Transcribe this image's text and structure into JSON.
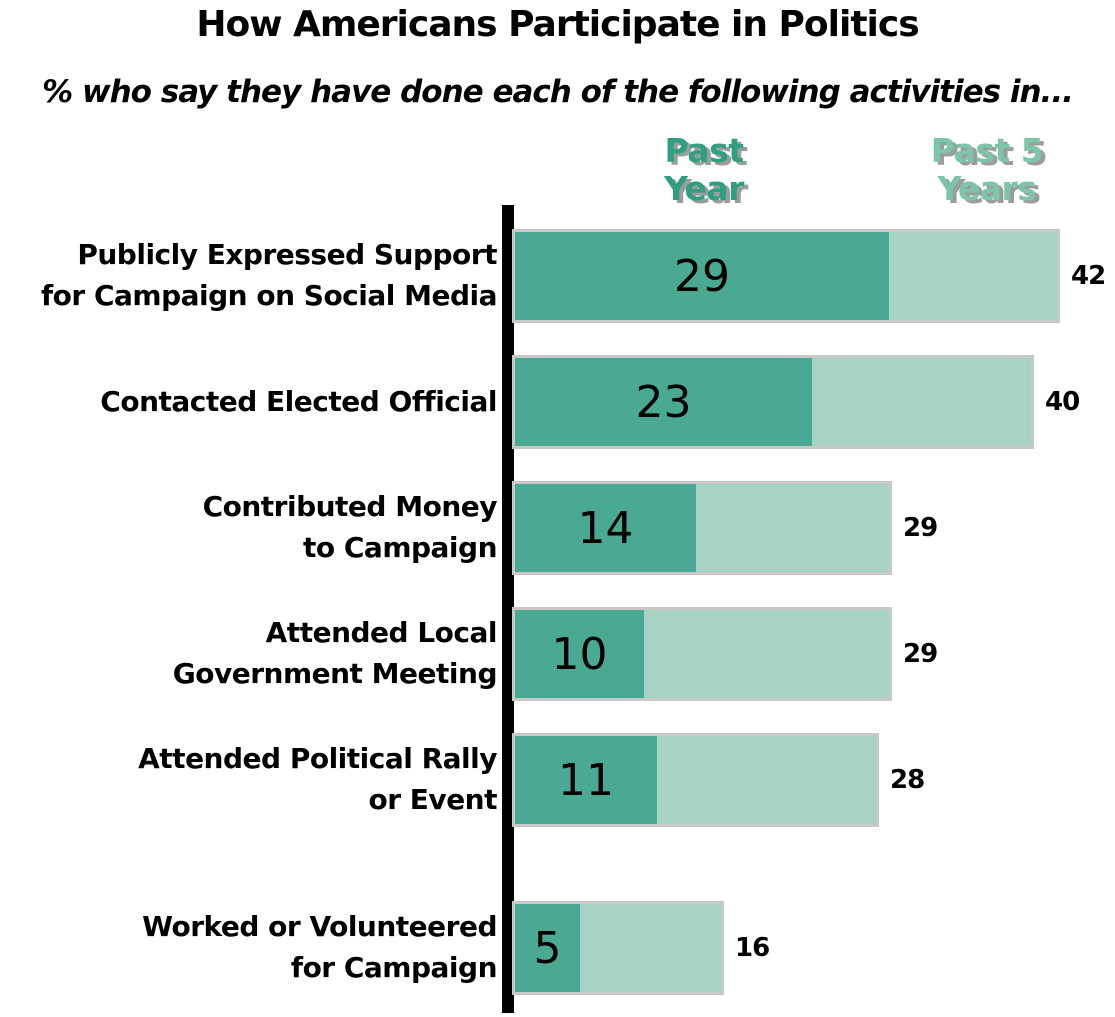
{
  "title": "How Americans Participate in Politics",
  "subtitle": "% who say they have done each of the following activities in...",
  "legend": {
    "past_year_label": "Past Year",
    "past_5_years_label": "Past 5 Years",
    "past_year_color": "#2f9f81",
    "past_5_years_color": "#7bc6a9"
  },
  "colors": {
    "bar_past_year": "#4aa992",
    "bar_past_5_years": "#a7d3c4",
    "bar_outline_shadow": "#c8c8c8",
    "axis": "#000000",
    "text": "#000000"
  },
  "chart_data": {
    "type": "bar",
    "subtype": "horizontal_stacked",
    "title": "How Americans Participate in Politics",
    "subtitle": "% who say they have done each of the following activities in...",
    "categories": [
      [
        "Publicly Expressed Support",
        "for Campaign on Social Media"
      ],
      [
        "Contacted Elected Official"
      ],
      [
        "Contributed Money",
        "to Campaign"
      ],
      [
        "Attended Local",
        "Government Meeting"
      ],
      [
        "Attended Political Rally",
        "or Event"
      ],
      [
        "Worked or Volunteered",
        "for Campaign"
      ]
    ],
    "series": [
      {
        "name": "Past Year",
        "color": "#4aa992",
        "values": [
          29,
          23,
          14,
          10,
          11,
          5
        ]
      },
      {
        "name": "Past 5 Years (additional)",
        "color": "#a7d3c4",
        "values": [
          13,
          17,
          15,
          19,
          17,
          11
        ]
      }
    ],
    "past_year_values": [
      29,
      23,
      14,
      10,
      11,
      5
    ],
    "past_5_years_totals": [
      42,
      40,
      29,
      29,
      28,
      16
    ],
    "value_labels_inside_bars": [
      "29",
      "23",
      "14",
      "10",
      "11",
      "5"
    ],
    "value_labels_right_of_bars": [
      "42",
      "40",
      "29",
      "29",
      "28",
      "16"
    ],
    "xlim": [
      0,
      46
    ],
    "grid": false,
    "legend_position": "top"
  }
}
